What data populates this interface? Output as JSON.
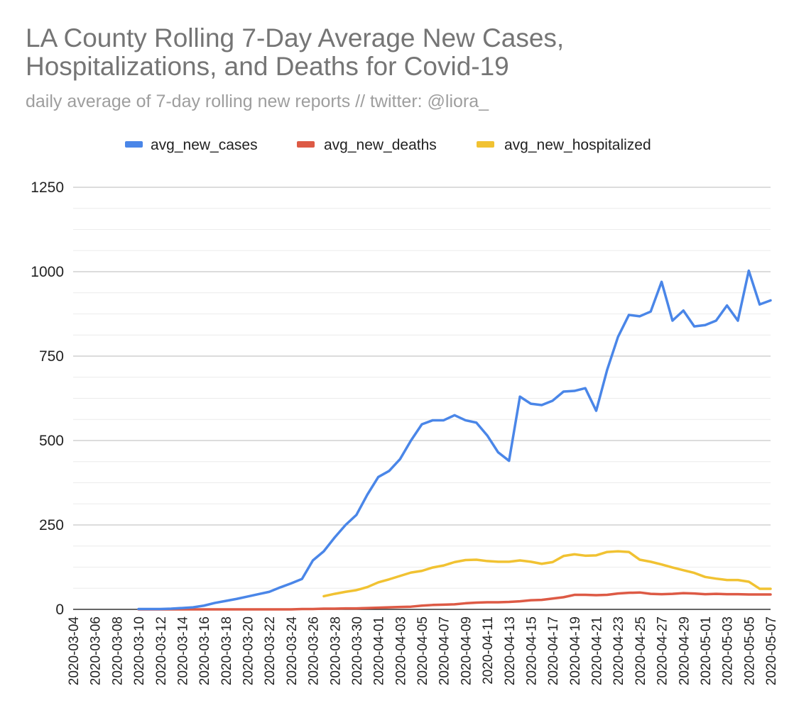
{
  "chart_data": {
    "type": "line",
    "title": "LA County Rolling 7-Day Average New Cases,",
    "title_line2": "Hospitalizations, and Deaths for Covid-19",
    "subtitle": "daily average of 7-day rolling new reports // twitter: @liora_",
    "xlabel": "",
    "ylabel": "",
    "ylim": [
      0,
      1250
    ],
    "y_ticks": [
      0,
      250,
      500,
      750,
      1000,
      1250
    ],
    "minor_grid_step": 62.5,
    "legend_position": "top-center",
    "x": [
      "2020-03-04",
      "2020-03-05",
      "2020-03-06",
      "2020-03-07",
      "2020-03-08",
      "2020-03-09",
      "2020-03-10",
      "2020-03-11",
      "2020-03-12",
      "2020-03-13",
      "2020-03-14",
      "2020-03-15",
      "2020-03-16",
      "2020-03-17",
      "2020-03-18",
      "2020-03-19",
      "2020-03-20",
      "2020-03-21",
      "2020-03-22",
      "2020-03-23",
      "2020-03-24",
      "2020-03-25",
      "2020-03-26",
      "2020-03-27",
      "2020-03-28",
      "2020-03-29",
      "2020-03-30",
      "2020-03-31",
      "2020-04-01",
      "2020-04-02",
      "2020-04-03",
      "2020-04-04",
      "2020-04-05",
      "2020-04-06",
      "2020-04-07",
      "2020-04-08",
      "2020-04-09",
      "2020-04-10",
      "2020-04-11",
      "2020-04-12",
      "2020-04-13",
      "2020-04-14",
      "2020-04-15",
      "2020-04-16",
      "2020-04-17",
      "2020-04-18",
      "2020-04-19",
      "2020-04-20",
      "2020-04-21",
      "2020-04-22",
      "2020-04-23",
      "2020-04-24",
      "2020-04-25",
      "2020-04-26",
      "2020-04-27",
      "2020-04-28",
      "2020-04-29",
      "2020-04-30",
      "2020-05-01",
      "2020-05-02",
      "2020-05-03",
      "2020-05-04",
      "2020-05-05",
      "2020-05-06",
      "2020-05-07"
    ],
    "x_tick_labels": [
      "2020-03-04",
      "2020-03-06",
      "2020-03-08",
      "2020-03-10",
      "2020-03-12",
      "2020-03-14",
      "2020-03-16",
      "2020-03-18",
      "2020-03-20",
      "2020-03-22",
      "2020-03-24",
      "2020-03-26",
      "2020-03-28",
      "2020-03-30",
      "2020-04-01",
      "2020-04-03",
      "2020-04-05",
      "2020-04-07",
      "2020-04-09",
      "2020-04-11",
      "2020-04-13",
      "2020-04-15",
      "2020-04-17",
      "2020-04-19",
      "2020-04-21",
      "2020-04-23",
      "2020-04-25",
      "2020-04-27",
      "2020-04-29",
      "2020-05-01",
      "2020-05-03",
      "2020-05-05",
      "2020-05-07"
    ],
    "series": [
      {
        "name": "avg_new_cases",
        "color": "#4a86e8",
        "values": [
          null,
          null,
          null,
          null,
          null,
          null,
          1,
          1,
          1,
          2,
          4,
          6,
          11,
          19,
          25,
          31,
          38,
          45,
          52,
          65,
          77,
          90,
          145,
          172,
          213,
          250,
          280,
          340,
          392,
          410,
          445,
          500,
          548,
          560,
          560,
          575,
          560,
          553,
          515,
          465,
          440,
          630,
          609,
          605,
          618,
          645,
          647,
          655,
          588,
          709,
          807,
          872,
          868,
          882,
          970,
          855,
          885,
          838,
          842,
          855,
          900,
          855,
          1003,
          903,
          915
        ]
      },
      {
        "name": "avg_new_deaths",
        "color": "#dd5a45",
        "values": [
          null,
          null,
          null,
          null,
          null,
          null,
          0,
          0,
          0,
          0,
          0,
          0,
          0,
          0,
          0,
          0,
          0,
          0,
          0,
          0,
          0,
          1,
          1,
          2,
          2,
          3,
          3,
          4,
          5,
          6,
          7,
          8,
          11,
          13,
          14,
          15,
          18,
          20,
          21,
          21,
          22,
          24,
          27,
          28,
          32,
          36,
          43,
          43,
          42,
          43,
          47,
          49,
          50,
          46,
          45,
          46,
          48,
          47,
          45,
          46,
          45,
          45,
          44,
          44,
          44
        ]
      },
      {
        "name": "avg_new_hospitalized",
        "color": "#f1c232",
        "values": [
          null,
          null,
          null,
          null,
          null,
          null,
          null,
          null,
          null,
          null,
          null,
          null,
          null,
          null,
          null,
          null,
          null,
          null,
          null,
          null,
          null,
          null,
          null,
          39,
          46,
          52,
          57,
          66,
          80,
          89,
          99,
          109,
          114,
          124,
          130,
          140,
          146,
          147,
          143,
          141,
          141,
          145,
          141,
          135,
          140,
          158,
          163,
          159,
          160,
          170,
          172,
          170,
          147,
          141,
          133,
          124,
          116,
          108,
          96,
          91,
          87,
          87,
          82,
          61,
          61
        ]
      }
    ]
  }
}
